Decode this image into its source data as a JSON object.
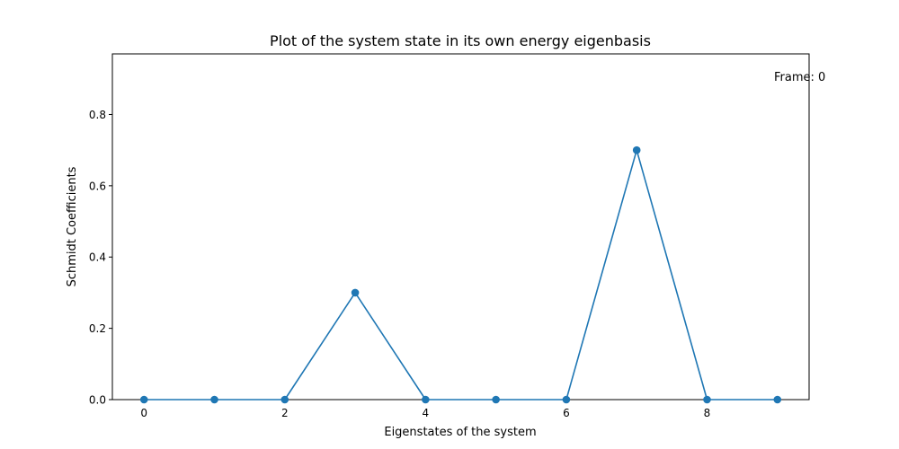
{
  "chart_data": {
    "type": "line",
    "title": "Plot of the system state in its own energy eigenbasis",
    "xlabel": "Eigenstates of the system",
    "ylabel": "Schmidt Coefficients",
    "annotation": "Frame: 0",
    "xlim": [
      -0.45,
      9.45
    ],
    "ylim": [
      0,
      0.97
    ],
    "xticks": [
      0,
      2,
      4,
      6,
      8
    ],
    "xtick_labels": [
      "0",
      "2",
      "4",
      "6",
      "8"
    ],
    "yticks": [
      0,
      0.2,
      0.4,
      0.6,
      0.8
    ],
    "ytick_labels": [
      "0.0",
      "0.2",
      "0.4",
      "0.6",
      "0.8"
    ],
    "grid": false,
    "series": [
      {
        "color": "#1f77b4",
        "marker": "circle",
        "x": [
          0,
          1,
          2,
          3,
          4,
          5,
          6,
          7,
          8,
          9
        ],
        "y": [
          0,
          0,
          0,
          0.3,
          0,
          0,
          0,
          0.7,
          0,
          0
        ]
      }
    ]
  }
}
